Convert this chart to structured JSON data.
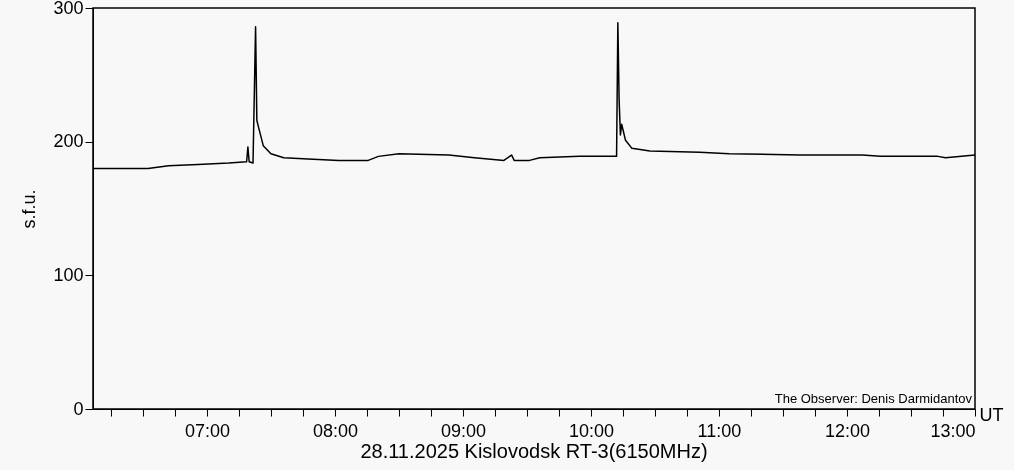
{
  "chart_data": {
    "type": "line",
    "title": "28.11.2025 Kislovodsk RT-3(6150MHz)",
    "xlabel": "UT",
    "ylabel": "s.f.u.",
    "annotations": [
      "The Observer: Denis Darmidantov"
    ],
    "x": [
      6.11,
      6.54,
      6.7,
      6.93,
      7.17,
      7.31,
      7.32,
      7.33,
      7.36,
      7.38,
      7.39,
      7.4,
      7.44,
      7.5,
      7.6,
      7.79,
      8.03,
      8.26,
      8.34,
      8.5,
      8.89,
      9.09,
      9.32,
      9.38,
      9.4,
      9.52,
      9.6,
      9.91,
      10.2,
      10.21,
      10.22,
      10.23,
      10.24,
      10.27,
      10.32,
      10.46,
      10.85,
      11.08,
      11.63,
      12.12,
      12.26,
      12.71,
      12.77,
      13.0
    ],
    "series": [
      {
        "color": "#000000",
        "values": [
          180,
          180,
          182,
          183,
          184,
          185,
          196,
          185,
          184,
          286,
          216,
          212,
          197,
          191,
          188,
          187,
          186,
          186,
          189,
          191,
          190,
          188,
          186,
          190,
          186,
          186,
          188,
          189,
          189,
          289,
          231,
          205,
          213,
          201,
          195,
          193,
          192,
          191,
          190,
          190,
          189,
          189,
          188,
          190
        ]
      }
    ],
    "xlim": [
      6.11,
      13
    ],
    "xticks": [
      {
        "value": 6.25,
        "label": null
      },
      {
        "value": 6.5,
        "label": null
      },
      {
        "value": 6.75,
        "label": null
      },
      {
        "value": 7,
        "label": "07:00"
      },
      {
        "value": 7.25,
        "label": null
      },
      {
        "value": 7.5,
        "label": null
      },
      {
        "value": 7.75,
        "label": null
      },
      {
        "value": 8,
        "label": "08:00"
      },
      {
        "value": 8.25,
        "label": null
      },
      {
        "value": 8.5,
        "label": null
      },
      {
        "value": 8.75,
        "label": null
      },
      {
        "value": 9,
        "label": "09:00"
      },
      {
        "value": 9.25,
        "label": null
      },
      {
        "value": 9.5,
        "label": null
      },
      {
        "value": 9.75,
        "label": null
      },
      {
        "value": 10,
        "label": "10:00"
      },
      {
        "value": 10.25,
        "label": null
      },
      {
        "value": 10.5,
        "label": null
      },
      {
        "value": 10.75,
        "label": null
      },
      {
        "value": 11,
        "label": "11:00"
      },
      {
        "value": 11.25,
        "label": null
      },
      {
        "value": 11.5,
        "label": null
      },
      {
        "value": 11.75,
        "label": null
      },
      {
        "value": 12,
        "label": "12:00"
      },
      {
        "value": 12.25,
        "label": null
      },
      {
        "value": 12.5,
        "label": null
      },
      {
        "value": 12.75,
        "label": null
      },
      {
        "value": 13,
        "label": "13:00"
      }
    ],
    "ylim": [
      0,
      300
    ],
    "yticks": [
      0,
      100,
      200,
      300
    ],
    "grid": false,
    "marker": "none",
    "line_style": "solid"
  }
}
